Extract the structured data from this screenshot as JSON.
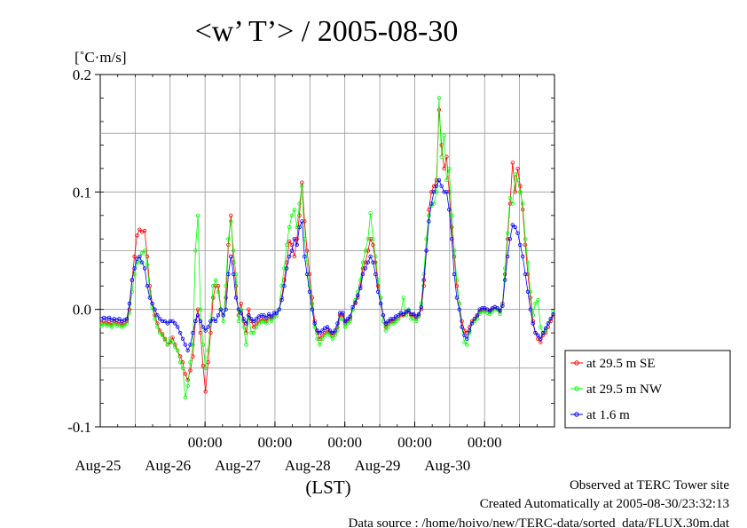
{
  "chart_data": {
    "type": "line",
    "title": "<w’ T’> / 2005-08-30",
    "ylabel": "[˚C·m/s]",
    "xlabel": "(LST)",
    "ylim": [
      -0.1,
      0.2
    ],
    "yticks": [
      "0.2",
      "0.1",
      "0.0",
      "-0.1"
    ],
    "x_time_labels": [
      "00:00",
      "00:00",
      "00:00",
      "00:00",
      "00:00"
    ],
    "x_date_labels": [
      "Aug-25",
      "Aug-26",
      "Aug-27",
      "Aug-28",
      "Aug-29",
      "Aug-30"
    ],
    "x_start": "2005-08-24 12:00",
    "x_end": "2005-08-30 24:00",
    "grid": true,
    "legend_position": "bottom-right outside plot",
    "series": [
      {
        "name": "at 29.5 m SE",
        "color": "#ff0000",
        "values": [
          -0.012,
          -0.01,
          -0.012,
          -0.011,
          -0.013,
          -0.01,
          -0.012,
          -0.011,
          -0.013,
          -0.012,
          -0.01,
          0.0,
          0.025,
          0.045,
          0.063,
          0.068,
          0.066,
          0.067,
          0.045,
          0.02,
          0.005,
          -0.005,
          -0.012,
          -0.018,
          -0.021,
          -0.025,
          -0.03,
          -0.028,
          -0.024,
          -0.03,
          -0.035,
          -0.04,
          -0.045,
          -0.055,
          -0.06,
          -0.052,
          -0.04,
          -0.01,
          0.0,
          -0.02,
          -0.048,
          -0.07,
          -0.045,
          -0.02,
          0.01,
          0.02,
          0.02,
          0.0,
          -0.005,
          0.01,
          0.055,
          0.08,
          0.04,
          0.02,
          -0.005,
          0.005,
          -0.01,
          -0.02,
          0.0,
          -0.01,
          -0.015,
          -0.012,
          -0.01,
          -0.008,
          -0.008,
          -0.01,
          -0.006,
          -0.008,
          -0.005,
          -0.005,
          0.0,
          0.01,
          0.025,
          0.04,
          0.058,
          0.055,
          0.045,
          0.06,
          0.08,
          0.108,
          0.075,
          0.05,
          0.03,
          0.01,
          -0.01,
          -0.02,
          -0.025,
          -0.022,
          -0.02,
          -0.018,
          -0.02,
          -0.022,
          -0.02,
          -0.015,
          -0.005,
          -0.005,
          -0.012,
          -0.01,
          -0.008,
          0.0,
          0.005,
          0.01,
          0.02,
          0.035,
          0.04,
          0.05,
          0.06,
          0.055,
          0.04,
          0.02,
          0.01,
          -0.005,
          -0.015,
          -0.012,
          -0.01,
          -0.01,
          -0.008,
          -0.008,
          -0.005,
          -0.005,
          -0.003,
          -0.002,
          -0.005,
          -0.005,
          -0.008,
          -0.005,
          0.0,
          0.02,
          0.05,
          0.085,
          0.1,
          0.105,
          0.11,
          0.17,
          0.14,
          0.12,
          0.13,
          0.1,
          0.07,
          0.045,
          0.02,
          0.005,
          -0.01,
          -0.018,
          -0.02,
          -0.015,
          -0.01,
          -0.008,
          -0.006,
          -0.002,
          0.0,
          0.0,
          0.0,
          -0.002,
          0.0,
          0.002,
          0.0,
          -0.002,
          0.005,
          0.03,
          0.06,
          0.09,
          0.125,
          0.1,
          0.12,
          0.105,
          0.085,
          0.055,
          0.03,
          0.01,
          -0.01,
          -0.02,
          -0.025,
          -0.028,
          -0.022,
          -0.02,
          -0.015,
          -0.01,
          -0.005
        ]
      },
      {
        "name": "at 29.5 m NW",
        "color": "#00ff00",
        "values": [
          -0.014,
          -0.012,
          -0.014,
          -0.013,
          -0.015,
          -0.012,
          -0.014,
          -0.013,
          -0.015,
          -0.014,
          -0.012,
          -0.003,
          0.015,
          0.03,
          0.04,
          0.04,
          0.048,
          0.05,
          0.038,
          0.015,
          0.002,
          -0.008,
          -0.015,
          -0.02,
          -0.022,
          -0.026,
          -0.03,
          -0.025,
          -0.028,
          -0.032,
          -0.035,
          -0.045,
          -0.05,
          -0.075,
          -0.065,
          -0.045,
          -0.03,
          0.05,
          0.08,
          0.0,
          -0.03,
          -0.05,
          -0.035,
          -0.01,
          0.02,
          0.025,
          0.015,
          0.0,
          -0.01,
          0.02,
          0.06,
          0.075,
          0.05,
          0.03,
          -0.01,
          0.0,
          -0.015,
          -0.03,
          -0.005,
          -0.02,
          -0.02,
          -0.015,
          -0.012,
          -0.01,
          -0.01,
          -0.012,
          -0.008,
          -0.01,
          -0.007,
          -0.005,
          0.0,
          0.02,
          0.035,
          0.055,
          0.07,
          0.08,
          0.085,
          0.07,
          0.09,
          0.105,
          0.06,
          0.04,
          0.02,
          0.005,
          -0.015,
          -0.025,
          -0.03,
          -0.025,
          -0.022,
          -0.02,
          -0.022,
          -0.025,
          -0.022,
          -0.018,
          -0.008,
          -0.008,
          -0.015,
          -0.012,
          -0.01,
          0.0,
          0.008,
          0.015,
          0.025,
          0.04,
          0.05,
          0.06,
          0.082,
          0.06,
          0.045,
          0.025,
          0.01,
          -0.01,
          -0.018,
          -0.015,
          -0.012,
          -0.012,
          -0.01,
          -0.008,
          -0.003,
          0.01,
          -0.005,
          0.0,
          -0.008,
          -0.008,
          -0.01,
          -0.006,
          0.005,
          0.03,
          0.06,
          0.08,
          0.088,
          0.09,
          0.1,
          0.18,
          0.13,
          0.148,
          0.11,
          0.12,
          0.08,
          0.05,
          0.025,
          0.005,
          -0.015,
          -0.028,
          -0.03,
          -0.02,
          -0.012,
          -0.01,
          -0.008,
          -0.004,
          -0.002,
          -0.002,
          -0.003,
          -0.004,
          -0.002,
          0.0,
          0.0,
          -0.004,
          0.003,
          0.035,
          0.065,
          0.095,
          0.09,
          0.115,
          0.11,
          0.1,
          0.09,
          0.06,
          0.04,
          0.015,
          -0.005,
          0.005,
          0.008,
          -0.015,
          -0.02,
          -0.018,
          -0.012,
          -0.008,
          -0.002
        ]
      },
      {
        "name": "at 1.6 m",
        "color": "#0000ff",
        "values": [
          -0.008,
          -0.007,
          -0.008,
          -0.007,
          -0.009,
          -0.008,
          -0.009,
          -0.008,
          -0.01,
          -0.009,
          -0.008,
          0.005,
          0.025,
          0.035,
          0.043,
          0.045,
          0.04,
          0.035,
          0.02,
          0.01,
          0.005,
          0.0,
          -0.005,
          -0.008,
          -0.01,
          -0.01,
          -0.012,
          -0.01,
          -0.01,
          -0.012,
          -0.015,
          -0.02,
          -0.025,
          -0.03,
          -0.035,
          -0.03,
          -0.02,
          -0.01,
          -0.005,
          -0.01,
          -0.015,
          -0.018,
          -0.015,
          -0.01,
          -0.008,
          -0.01,
          -0.005,
          0.0,
          -0.005,
          0.0,
          0.03,
          0.045,
          0.03,
          0.01,
          0.0,
          -0.003,
          -0.008,
          -0.012,
          -0.005,
          -0.008,
          -0.01,
          -0.008,
          -0.006,
          -0.005,
          -0.005,
          -0.007,
          -0.004,
          -0.006,
          -0.003,
          -0.003,
          0.0,
          0.008,
          0.02,
          0.035,
          0.045,
          0.05,
          0.06,
          0.055,
          0.07,
          0.075,
          0.045,
          0.03,
          0.015,
          0.0,
          -0.012,
          -0.018,
          -0.02,
          -0.018,
          -0.016,
          -0.015,
          -0.018,
          -0.02,
          -0.018,
          -0.012,
          -0.003,
          -0.003,
          -0.01,
          -0.008,
          -0.006,
          0.002,
          0.006,
          0.012,
          0.018,
          0.03,
          0.035,
          0.04,
          0.045,
          0.04,
          0.03,
          0.015,
          0.005,
          -0.005,
          -0.012,
          -0.01,
          -0.008,
          -0.008,
          -0.006,
          -0.005,
          -0.003,
          -0.004,
          -0.002,
          -0.001,
          -0.004,
          -0.004,
          -0.006,
          -0.004,
          0.002,
          0.025,
          0.05,
          0.075,
          0.09,
          0.1,
          0.105,
          0.11,
          0.105,
          0.1,
          0.1,
          0.085,
          0.06,
          0.03,
          0.01,
          0.0,
          -0.015,
          -0.022,
          -0.025,
          -0.018,
          -0.012,
          -0.008,
          -0.005,
          0.0,
          0.001,
          0.001,
          0.0,
          -0.001,
          0.001,
          0.002,
          0.001,
          -0.001,
          0.003,
          0.025,
          0.045,
          0.06,
          0.072,
          0.07,
          0.065,
          0.055,
          0.045,
          0.03,
          0.015,
          0.0,
          -0.012,
          -0.02,
          -0.022,
          -0.025,
          -0.02,
          -0.016,
          -0.012,
          -0.008,
          -0.004
        ]
      }
    ]
  },
  "footer": {
    "observed": "Observed at TERC Tower site",
    "created": "Created Automatically at 2005-08-30/23:32:13",
    "source": "Data source : /home/hoivo/new/TERC-data/sorted_data/FLUX.30m.dat"
  }
}
